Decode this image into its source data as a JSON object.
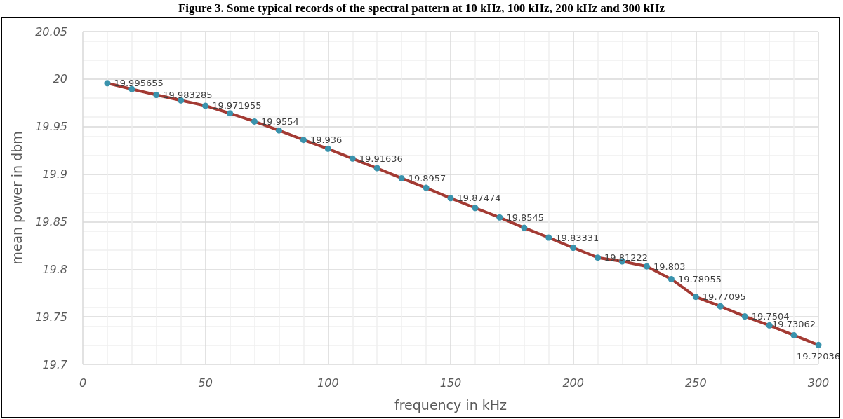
{
  "chart_data": {
    "type": "line",
    "title": "Figure 3. Some typical records of the spectral pattern at 10 kHz, 100 kHz, 200 kHz and 300 kHz",
    "xlabel": "frequency in kHz",
    "ylabel": "mean power in dbm",
    "x": [
      10,
      20,
      30,
      40,
      50,
      60,
      70,
      80,
      90,
      100,
      110,
      120,
      130,
      140,
      150,
      160,
      170,
      180,
      190,
      200,
      210,
      220,
      230,
      240,
      250,
      260,
      270,
      280,
      290,
      300
    ],
    "series": [
      {
        "color": "#a33a33",
        "colors": [
          "#3a93ad",
          "#3a93ad",
          "#3a93ad",
          "#3a93ad",
          "#3a93ad",
          "#3a93ad",
          "#3a93ad",
          "#3a93ad",
          "#3a93ad",
          "#3a93ad",
          "#3a93ad",
          "#3a93ad",
          "#3a93ad",
          "#3a93ad",
          "#3a93ad",
          "#3a93ad",
          "#3a93ad",
          "#3a93ad",
          "#3a93ad",
          "#3a93ad",
          "#3a93ad",
          "#3a93ad",
          "#3a93ad",
          "#3a93ad",
          "#3a93ad",
          "#3a93ad",
          "#3a93ad",
          "#3a93ad",
          "#3a93ad",
          "#3a93ad"
        ],
        "values": [
          19.995655,
          19.9894,
          19.983285,
          19.9776,
          19.971955,
          19.964,
          19.9554,
          19.946,
          19.936,
          19.9267,
          19.91636,
          19.9063,
          19.8957,
          19.8856,
          19.87474,
          19.8645,
          19.8545,
          19.8436,
          19.83331,
          19.8227,
          19.81222,
          19.8083,
          19.803,
          19.78955,
          19.77095,
          19.761,
          19.7504,
          19.741,
          19.73062,
          19.72036
        ],
        "value_labels": [
          "19.995655",
          null,
          "19.983285",
          null,
          "19.971955",
          null,
          "19.9554",
          null,
          "19.936",
          null,
          "19.91636",
          null,
          "19.8957",
          null,
          "19.87474",
          null,
          "19.8545",
          null,
          "19.83331",
          null,
          "19.81222",
          null,
          "19.803",
          "19.78955",
          "19.77095",
          null,
          "19.7504",
          null,
          "19.73062",
          "19.72036"
        ]
      }
    ],
    "marker": "circle",
    "xlim": [
      0,
      300
    ],
    "xticks": [
      0,
      50,
      100,
      150,
      200,
      250,
      300
    ],
    "ylim": [
      19.7,
      20.05
    ],
    "yticks": [
      19.7,
      19.75,
      19.8,
      19.85,
      19.9,
      19.95,
      20,
      20.05
    ],
    "grid": true
  }
}
